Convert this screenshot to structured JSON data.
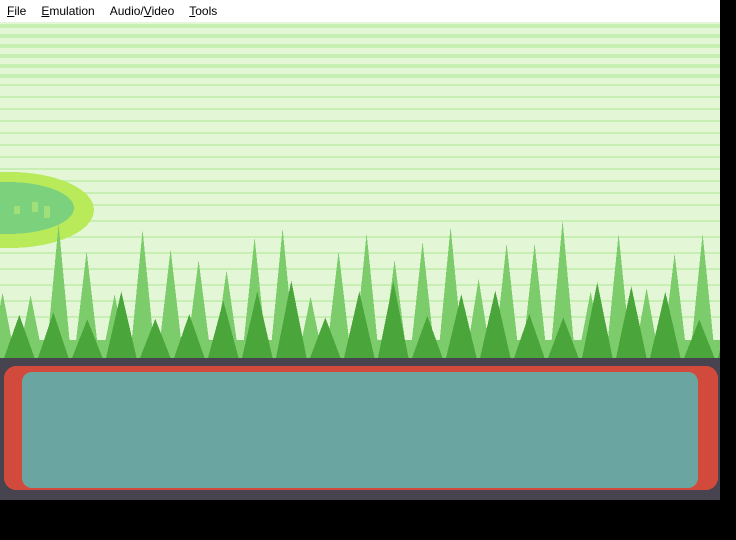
{
  "menubar": {
    "items": [
      {
        "pre": "",
        "mnemonic": "F",
        "post": "ile"
      },
      {
        "pre": "",
        "mnemonic": "E",
        "post": "mulation"
      },
      {
        "pre": "Audio/",
        "mnemonic": "V",
        "post": "ideo"
      },
      {
        "pre": "",
        "mnemonic": "T",
        "post": "ools"
      }
    ]
  },
  "scene": {
    "sky_light": "#e3f7d6",
    "sky_stripe": "#c7efb3",
    "grass_light": "#7ccc6c",
    "grass_dark": "#4aa63a",
    "platform_outer": "#b8ea5a",
    "platform_inner": "#7cd27c",
    "hud_frame": "#47434f",
    "hud_border": "#d24a3c",
    "hud_fill": "#6aa5a2"
  }
}
